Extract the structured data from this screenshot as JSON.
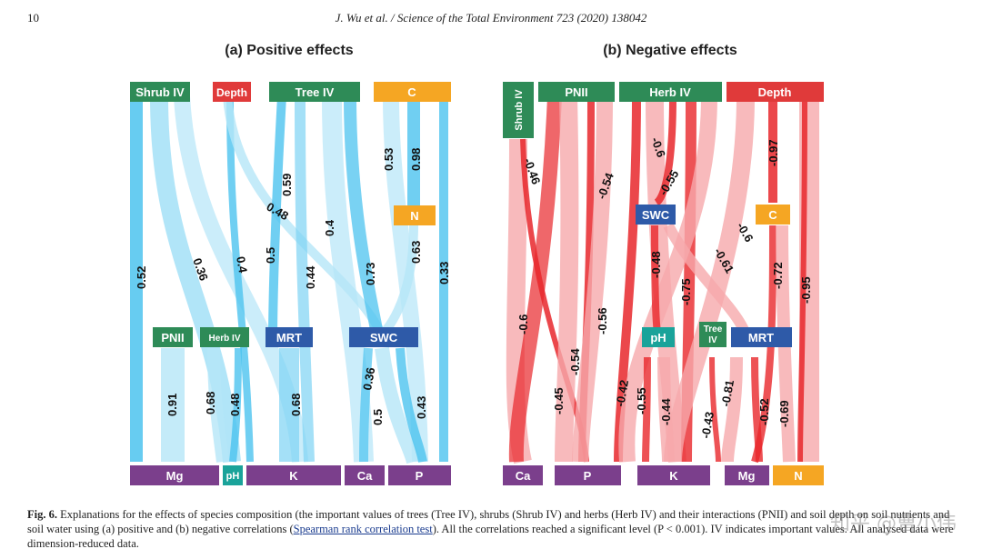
{
  "header": {
    "page_number": "10",
    "journal": "J. Wu et al. / Science of the Total Environment 723 (2020) 138042"
  },
  "colors": {
    "positive_link": "#4cc3ef",
    "positive_link_light": "#b5e6f8",
    "negative_link": "#e8272b",
    "negative_link_light": "#f6a9ab",
    "green_node": "#2e8b57",
    "red_node": "#e03a3a",
    "orange_node": "#f5a623",
    "blue_node": "#2e5aa8",
    "purple_node": "#7b3f8c",
    "teal_node": "#1aa39a"
  },
  "figure": {
    "panel_a": {
      "title": "(a) Positive effects",
      "nodes": {
        "shrub_iv": "Shrub IV",
        "depth": "Depth",
        "tree_iv": "Tree IV",
        "c": "C",
        "n": "N",
        "pnii": "PNII",
        "herb_iv": "Herb IV",
        "mrt": "MRT",
        "swc": "SWC",
        "mg": "Mg",
        "ph": "pH",
        "k": "K",
        "ca": "Ca",
        "p": "P"
      },
      "correlations": [
        "0.52",
        "0.36",
        "0.4",
        "0.59",
        "0.48",
        "0.5",
        "0.44",
        "0.4",
        "0.73",
        "0.53",
        "0.98",
        "0.63",
        "0.33",
        "0.91",
        "0.68",
        "0.48",
        "0.68",
        "0.36",
        "0.5",
        "0.43"
      ]
    },
    "panel_b": {
      "title": "(b) Negative effects",
      "nodes": {
        "shrub_iv": "Shrub IV",
        "pnii": "PNII",
        "herb_iv": "Herb IV",
        "depth": "Depth",
        "swc": "SWC",
        "c": "C",
        "ph": "pH",
        "tree_iv_line1": "Tree",
        "tree_iv_line2": "IV",
        "mrt": "MRT",
        "ca": "Ca",
        "p": "P",
        "k": "K",
        "mg": "Mg",
        "n": "N"
      },
      "correlations": [
        "-0.46",
        "-0.54",
        "-0.6",
        "-0.55",
        "-0.97",
        "-0.6",
        "-0.61",
        "-0.48",
        "-0.75",
        "-0.72",
        "-0.95",
        "-0.6",
        "-0.54",
        "-0.56",
        "-0.45",
        "-0.42",
        "-0.55",
        "-0.44",
        "-0.43",
        "-0.81",
        "-0.52",
        "-0.69"
      ]
    }
  },
  "caption": {
    "fig_label": "Fig. 6.",
    "text_part1": " Explanations for the effects of species composition (the important values of trees (Tree IV), shrubs (Shrub IV) and herbs (Herb IV) and their interactions (PNII) and soil depth on soil nutrients and soil water using (a) positive and (b) negative correlations (",
    "link_text": "Spearman rank correlation test",
    "text_part2": "). All the correlations reached a significant level (P < 0.001). IV indicates important values. All analysed data were dimension-reduced data."
  },
  "watermark": "知乎 @曹小伟"
}
